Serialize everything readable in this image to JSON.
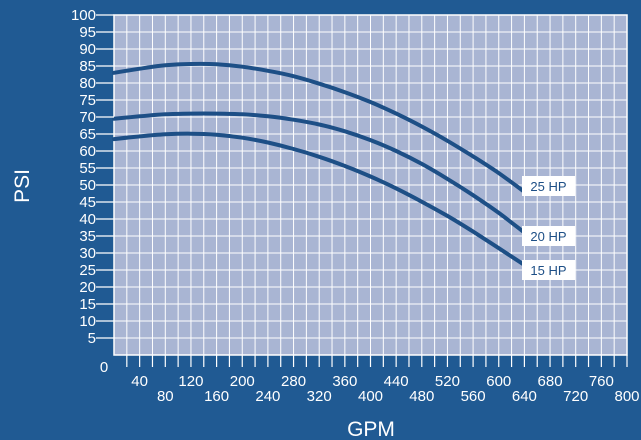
{
  "chart_data": {
    "type": "line",
    "title": "",
    "xlabel": "GPM",
    "ylabel": "PSI",
    "xlim": [
      0,
      800
    ],
    "ylim": [
      0,
      100
    ],
    "grid": true,
    "x_ticks_row1": [
      "40",
      "120",
      "200",
      "280",
      "360",
      "440",
      "520",
      "600",
      "680",
      "760"
    ],
    "x_ticks_row2": [
      "80",
      "160",
      "240",
      "320",
      "400",
      "480",
      "560",
      "640",
      "720",
      "800"
    ],
    "y_ticks": [
      "5",
      "10",
      "15",
      "20",
      "25",
      "30",
      "35",
      "40",
      "45",
      "50",
      "55",
      "60",
      "65",
      "70",
      "75",
      "80",
      "85",
      "90",
      "95",
      "100"
    ],
    "origin_label": "0",
    "series": [
      {
        "name": "25 HP",
        "x": [
          0,
          40,
          80,
          120,
          160,
          200,
          240,
          280,
          320,
          360,
          400,
          440,
          480,
          520,
          560,
          600,
          640
        ],
        "values": [
          83,
          84.2,
          85.2,
          85.6,
          85.5,
          84.8,
          83.6,
          82,
          79.8,
          77.3,
          74.4,
          71,
          67.2,
          63,
          58.4,
          53.5,
          48
        ]
      },
      {
        "name": "20 HP",
        "x": [
          0,
          40,
          80,
          120,
          160,
          200,
          240,
          280,
          320,
          360,
          400,
          440,
          480,
          520,
          560,
          600,
          640
        ],
        "values": [
          69.5,
          70.2,
          70.8,
          71,
          71,
          70.8,
          70.2,
          69.2,
          67.8,
          65.8,
          63.2,
          60,
          56.2,
          51.8,
          47,
          41.8,
          36
        ]
      },
      {
        "name": "15 HP",
        "x": [
          0,
          40,
          80,
          120,
          160,
          200,
          240,
          280,
          320,
          360,
          400,
          440,
          480,
          520,
          560,
          600,
          640
        ],
        "values": [
          63.5,
          64.3,
          64.9,
          65.1,
          64.8,
          63.9,
          62.5,
          60.6,
          58.3,
          55.6,
          52.5,
          49,
          45.1,
          40.9,
          36.3,
          31.4,
          26.5
        ]
      }
    ],
    "colors": {
      "background": "#205a93",
      "plot_area": "#a9b5d3",
      "grid": "#ffffff",
      "curve": "#1d4f86",
      "text": "#ffffff",
      "label_box": "#ffffff"
    }
  }
}
